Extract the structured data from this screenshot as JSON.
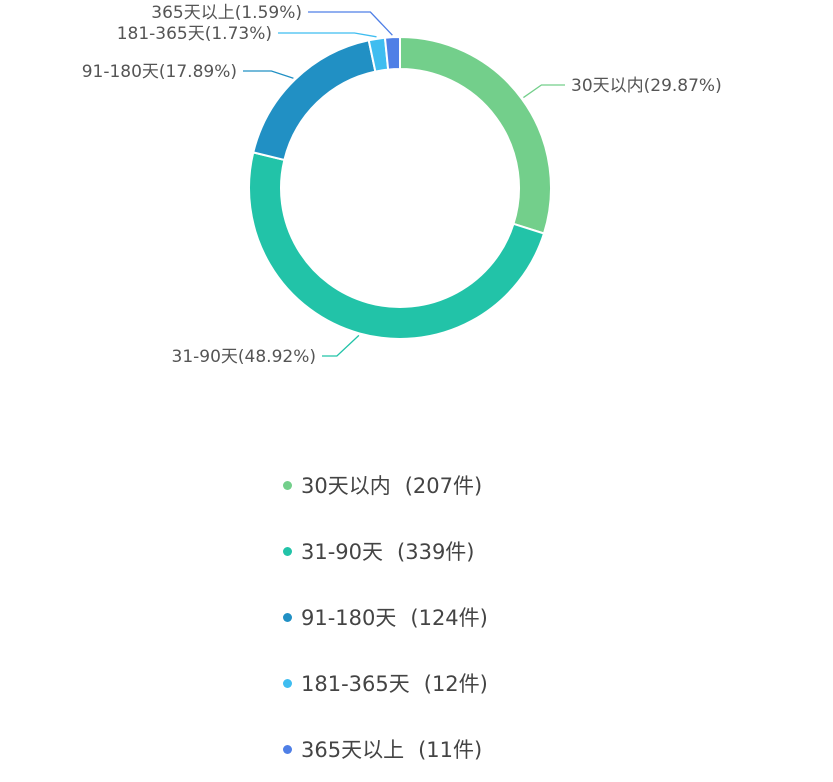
{
  "chart_data": {
    "type": "pie",
    "style": "donut",
    "title": "",
    "unit": "件",
    "slices": [
      {
        "label": "30天以内",
        "value": 207,
        "percent_label": "30天以内(29.87%)",
        "legend_count": "(207件)",
        "color": "#73cf8b"
      },
      {
        "label": "31-90天",
        "value": 339,
        "percent_label": "31-90天(48.92%)",
        "legend_count": "(339件)",
        "color": "#22c3a8"
      },
      {
        "label": "91-180天",
        "value": 124,
        "percent_label": "91-180天(17.89%)",
        "legend_count": "(124件)",
        "color": "#2190c4"
      },
      {
        "label": "181-365天",
        "value": 12,
        "percent_label": "181-365天(1.73%)",
        "legend_count": "(12件)",
        "color": "#3fbdf0"
      },
      {
        "label": "365天以上",
        "value": 11,
        "percent_label": "365天以上(1.59%)",
        "legend_count": "(11件)",
        "color": "#4f7fe6"
      }
    ],
    "legend_position": "bottom"
  }
}
